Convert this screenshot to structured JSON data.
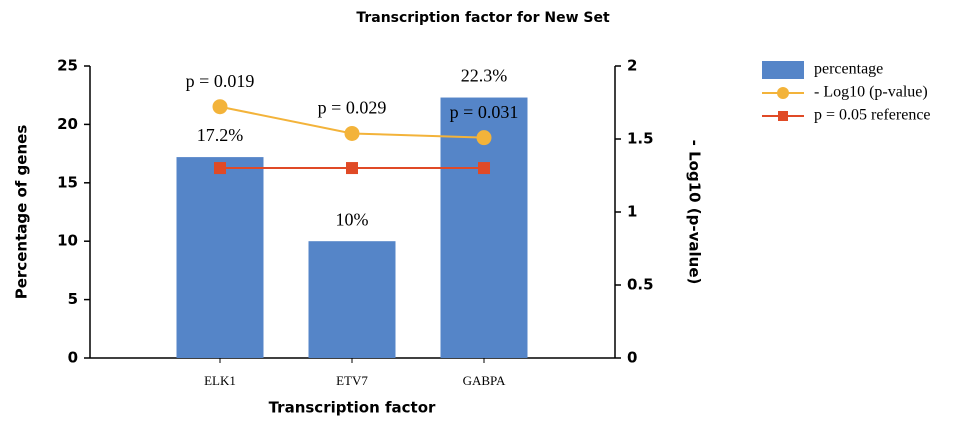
{
  "chart_data": {
    "type": "bar",
    "title": "Transcription factor for New Set",
    "x_label": "Transcription factor",
    "y_label": "Percentage of genes",
    "y2_label": "- Log10 (p-value)",
    "categories": [
      "ELK1",
      "ETV7",
      "GABPA"
    ],
    "series": [
      {
        "name": "percentage",
        "type": "bar",
        "color": "#5585c8",
        "values": [
          17.2,
          10,
          22.3
        ],
        "value_labels": [
          "17.2%",
          "10%",
          "22.3%"
        ]
      },
      {
        "name": "- Log10 (p-value)",
        "type": "line",
        "axis": "y2",
        "color": "#f3b33a",
        "marker": "circle",
        "values": [
          1.721,
          1.538,
          1.509
        ],
        "value_labels": [
          "p = 0.019",
          "p = 0.029",
          "p = 0.031"
        ]
      },
      {
        "name": "p = 0.05 reference",
        "type": "line",
        "axis": "y2",
        "color": "#e04a26",
        "marker": "square",
        "values": [
          1.301,
          1.301,
          1.301
        ]
      }
    ],
    "ylim": [
      0,
      25
    ],
    "yticks": [
      0,
      5,
      10,
      15,
      20,
      25
    ],
    "y2lim": [
      0,
      2
    ],
    "y2ticks": [
      0,
      0.5,
      1,
      1.5,
      2
    ],
    "grid": false,
    "legend": "right"
  }
}
